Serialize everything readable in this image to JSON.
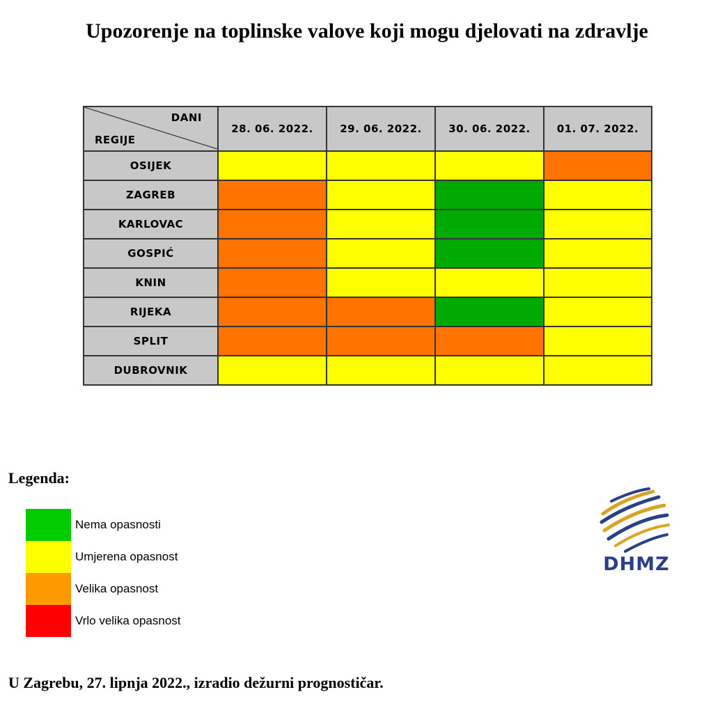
{
  "title": "Upozorenje na toplinske valove koji mogu djelovati na zdravlje",
  "table": {
    "corner_top": "DANI",
    "corner_bottom": "REGIJE",
    "dates": [
      "28. 06. 2022.",
      "29. 06. 2022.",
      "30. 06. 2022.",
      "01. 07. 2022."
    ],
    "rows": [
      {
        "region": "OSIJEK",
        "levels": [
          "yellow",
          "yellow",
          "yellow",
          "orange"
        ]
      },
      {
        "region": "ZAGREB",
        "levels": [
          "orange",
          "yellow",
          "green",
          "yellow"
        ]
      },
      {
        "region": "KARLOVAC",
        "levels": [
          "orange",
          "yellow",
          "green",
          "yellow"
        ]
      },
      {
        "region": "GOSPIĆ",
        "levels": [
          "orange",
          "yellow",
          "green",
          "yellow"
        ]
      },
      {
        "region": "KNIN",
        "levels": [
          "orange",
          "yellow",
          "yellow",
          "yellow"
        ]
      },
      {
        "region": "RIJEKA",
        "levels": [
          "orange",
          "orange",
          "green",
          "yellow"
        ]
      },
      {
        "region": "SPLIT",
        "levels": [
          "orange",
          "orange",
          "orange",
          "yellow"
        ]
      },
      {
        "region": "DUBROVNIK",
        "levels": [
          "yellow",
          "yellow",
          "yellow",
          "yellow"
        ]
      }
    ]
  },
  "legend": {
    "title": "Legenda:",
    "items": [
      {
        "label": "Nema opasnosti",
        "color": "#00cc00"
      },
      {
        "label": "Umjerena opasnost",
        "color": "#ffff00"
      },
      {
        "label": "Velika opasnost",
        "color": "#ff9900"
      },
      {
        "label": "Vrlo velika opasnost",
        "color": "#ff0000"
      }
    ]
  },
  "logo": {
    "text": "DHMZ"
  },
  "footer": "U Zagrebu, 27. lipnja 2022., izradio dežurni prognostičar."
}
